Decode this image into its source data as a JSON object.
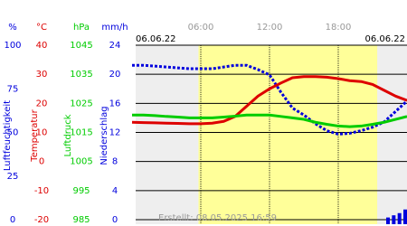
{
  "chart_data": {
    "type": "line",
    "date_start": "06.06.22",
    "date_end": "06.06.22",
    "footer": "Erstellt: 08.05.2025 16:59",
    "xlim": [
      0,
      24
    ],
    "xticks": [
      {
        "value": 6,
        "label": "06:00"
      },
      {
        "value": 12,
        "label": "12:00"
      },
      {
        "value": 18,
        "label": "18:00"
      }
    ],
    "daylight": [
      5.8,
      21.4
    ],
    "grid": true,
    "series": [
      {
        "name": "Luftfeuchtigkeit",
        "unit": "%",
        "color": "#0000dd",
        "kind": "dots",
        "ylim": [
          0,
          100
        ],
        "yticks": [
          0,
          25,
          50,
          75,
          100
        ],
        "x": [
          0,
          1,
          2,
          3,
          4,
          5,
          6,
          7,
          8,
          9,
          10,
          11,
          12,
          13,
          14,
          15,
          16,
          17,
          18,
          19,
          20,
          21,
          22,
          23,
          24
        ],
        "values": [
          88.5,
          88.5,
          88,
          87.5,
          87,
          86.5,
          86.5,
          86.5,
          87.5,
          88.5,
          88.5,
          86,
          83,
          73,
          64,
          60,
          55,
          51,
          49,
          49.5,
          51,
          53,
          56,
          62,
          68
        ]
      },
      {
        "name": "Temperatur",
        "unit": "°C",
        "color": "#dd0000",
        "kind": "line",
        "ylim": [
          -20,
          40
        ],
        "yticks": [
          -20,
          -10,
          0,
          10,
          20,
          30,
          40
        ],
        "x": [
          0,
          1,
          2,
          3,
          4,
          5,
          6,
          7,
          8,
          9,
          10,
          11,
          12,
          13,
          14,
          15,
          16,
          17,
          18,
          19,
          20,
          21,
          22,
          23,
          24
        ],
        "values": [
          13.5,
          13.4,
          13.3,
          13.2,
          13.1,
          13.0,
          13.0,
          13.2,
          13.8,
          15.5,
          19,
          22.5,
          25,
          27,
          28.8,
          29.2,
          29.2,
          29,
          28.5,
          27.8,
          27.5,
          26.5,
          24.5,
          22.5,
          21.0
        ]
      },
      {
        "name": "Luftdruck",
        "unit": "hPa",
        "color": "#00cc00",
        "kind": "line",
        "ylim": [
          985,
          1045
        ],
        "yticks": [
          985,
          995,
          1005,
          1015,
          1025,
          1035,
          1045
        ],
        "x": [
          0,
          1,
          2,
          3,
          4,
          5,
          6,
          7,
          8,
          9,
          10,
          11,
          12,
          13,
          14,
          15,
          16,
          17,
          18,
          19,
          20,
          21,
          22,
          23,
          24
        ],
        "values": [
          1021,
          1021,
          1020.8,
          1020.5,
          1020.3,
          1020,
          1020,
          1020,
          1020.3,
          1020.6,
          1021,
          1021,
          1021,
          1020.5,
          1020,
          1019.5,
          1018.5,
          1017.8,
          1017.2,
          1017,
          1017.2,
          1017.8,
          1018.5,
          1019.5,
          1020.5
        ]
      },
      {
        "name": "Niederschlag",
        "unit": "mm/h",
        "color": "#0000dd",
        "kind": "bar",
        "ylim": [
          0,
          24
        ],
        "yticks": [
          0,
          4,
          8,
          12,
          16,
          20,
          24
        ],
        "x": [
          22.5,
          23,
          23.5,
          24
        ],
        "values": [
          0.3,
          0.6,
          0.9,
          1.4
        ]
      }
    ]
  }
}
